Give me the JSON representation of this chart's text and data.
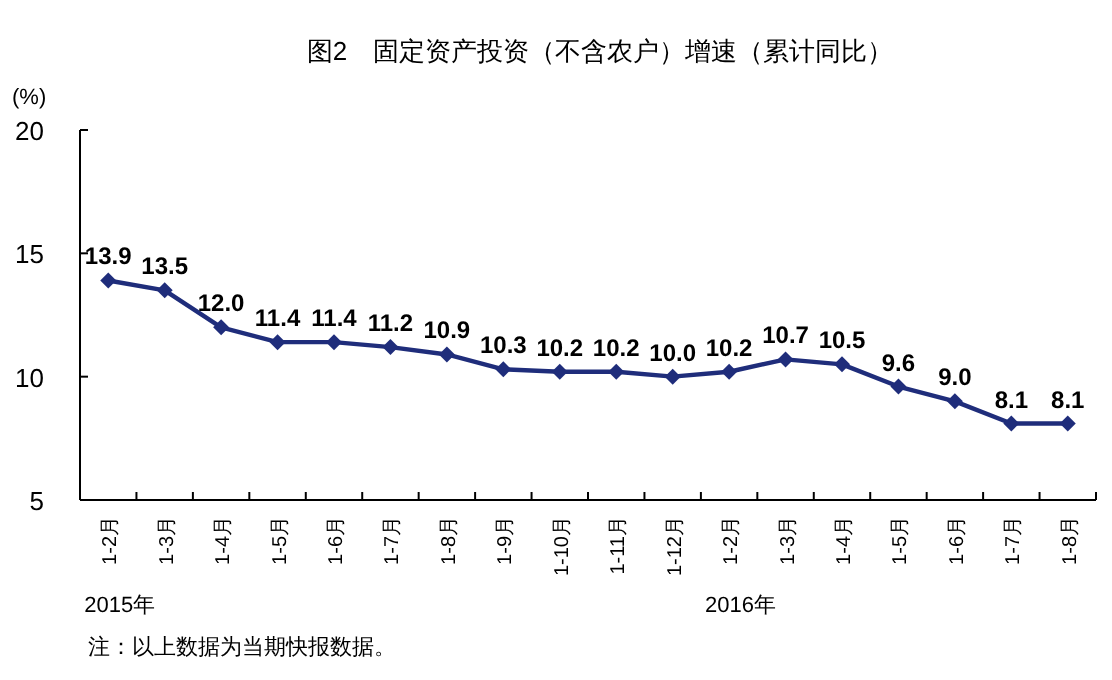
{
  "chart_data": {
    "type": "line",
    "title": "图2　固定资产投资（不含农户）增速（累计同比）",
    "ylabel": "(%)",
    "categories": [
      "1-2月",
      "1-3月",
      "1-4月",
      "1-5月",
      "1-6月",
      "1-7月",
      "1-8月",
      "1-9月",
      "1-10月",
      "1-11月",
      "1-12月",
      "1-2月",
      "1-3月",
      "1-4月",
      "1-5月",
      "1-6月",
      "1-7月",
      "1-8月"
    ],
    "series": [
      {
        "color": "#1f2d7b",
        "values": [
          13.9,
          13.5,
          12.0,
          11.4,
          11.4,
          11.2,
          10.9,
          10.3,
          10.2,
          10.2,
          10.0,
          10.2,
          10.7,
          10.5,
          9.6,
          9.0,
          8.1,
          8.1
        ],
        "value_labels": [
          "13.9",
          "13.5",
          "12.0",
          "11.4",
          "11.4",
          "11.2",
          "10.9",
          "10.3",
          "10.2",
          "10.2",
          "10.0",
          "10.2",
          "10.7",
          "10.5",
          "9.6",
          "9.0",
          "8.1",
          "8.1"
        ]
      }
    ],
    "ylim": [
      5,
      20
    ],
    "yticks": [
      5,
      10,
      15,
      20
    ],
    "marker": "diamond",
    "grid": false,
    "annotations": [
      "2015年",
      "2016年",
      "注：以上数据为当期快报数据。"
    ]
  }
}
